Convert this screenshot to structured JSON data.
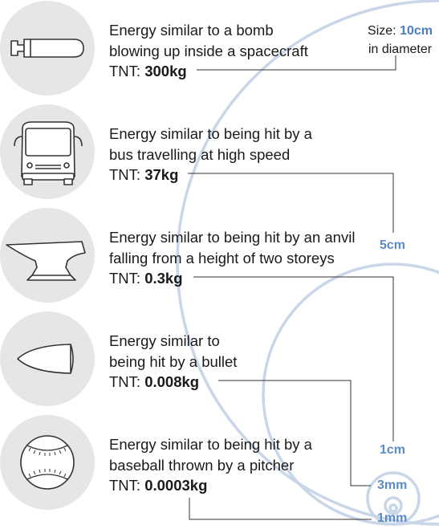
{
  "colors": {
    "circle_stroke": "#c9d5e8",
    "label_blue": "#5b8bc6",
    "leader_line": "#333333",
    "icon_bg": "#e6e6e6"
  },
  "size_note": {
    "prefix": "Size:",
    "value": "10cm",
    "suffix": "in diameter"
  },
  "rows": [
    {
      "icon": "bomb-icon",
      "lines": [
        "Energy similar to a bomb",
        "blowing up inside a spacecraft"
      ],
      "tnt_prefix": "TNT:",
      "tnt_value": "300kg"
    },
    {
      "icon": "bus-icon",
      "lines": [
        "Energy similar to being hit by a",
        "bus travelling at high speed"
      ],
      "tnt_prefix": "TNT:",
      "tnt_value": "37kg"
    },
    {
      "icon": "anvil-icon",
      "lines": [
        "Energy similar to being hit by an anvil",
        "falling from a height of two storeys"
      ],
      "tnt_prefix": "TNT:",
      "tnt_value": "0.3kg"
    },
    {
      "icon": "bullet-icon",
      "lines": [
        "Energy similar to",
        "being hit by a bullet"
      ],
      "tnt_prefix": "TNT:",
      "tnt_value": "0.008kg"
    },
    {
      "icon": "baseball-icon",
      "lines": [
        "Energy similar to being hit by a",
        "baseball thrown by a pitcher"
      ],
      "tnt_prefix": "TNT:",
      "tnt_value": "0.0003kg"
    }
  ],
  "size_labels": [
    "5cm",
    "1cm",
    "3mm",
    "1mm"
  ]
}
